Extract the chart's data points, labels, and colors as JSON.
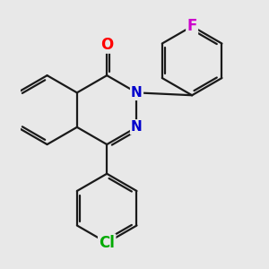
{
  "background_color": "#e8e8e8",
  "bond_color": "#1a1a1a",
  "bond_width": 1.6,
  "atom_colors": {
    "O": "#ff0000",
    "N": "#0000cc",
    "F": "#cc00cc",
    "Cl": "#00aa00"
  },
  "figsize": [
    3.0,
    3.0
  ],
  "dpi": 100
}
